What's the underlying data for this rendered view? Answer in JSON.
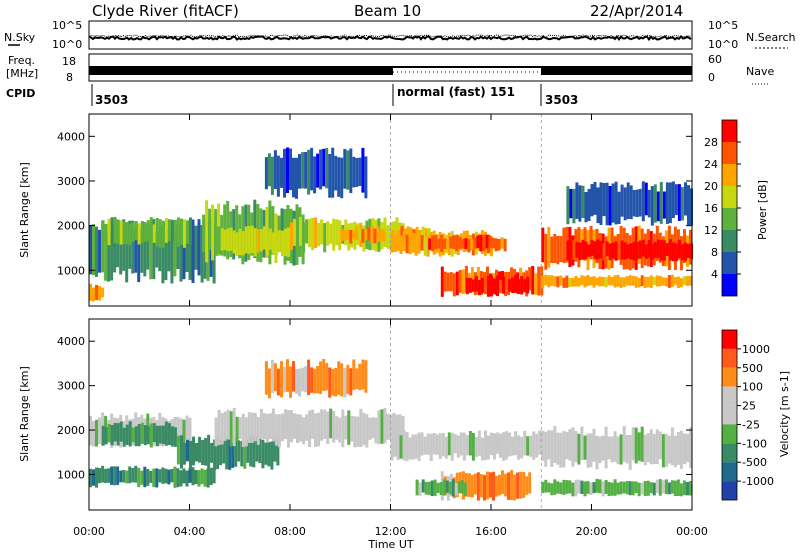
{
  "header": {
    "station": "Clyde River (fitACF)",
    "beam": "Beam 10",
    "date": "22/Apr/2014"
  },
  "noise_panel": {
    "left_label": "N.Sky",
    "right_label": "N.Search",
    "left_ticks": [
      "10^5",
      "10^0"
    ],
    "right_ticks": [
      "10^5",
      "10^0"
    ]
  },
  "freq_panel": {
    "left_label_line1": "Freq.",
    "left_label_line2": "[MHz]",
    "right_label": "Nave",
    "left_ticks": [
      "18",
      "8"
    ],
    "right_ticks": [
      "60",
      "0"
    ]
  },
  "cpid_panel": {
    "label": "CPID",
    "segments": [
      "3503",
      "normal (fast) 151",
      "3503"
    ]
  },
  "axes": {
    "ylabel": "Slant Range [km]",
    "xlabel": "Time UT",
    "x_ticks": [
      "00:00",
      "04:00",
      "08:00",
      "12:00",
      "16:00",
      "20:00",
      "00:00"
    ],
    "y_ticks": [
      "1000",
      "2000",
      "3000",
      "4000"
    ]
  },
  "colors": {
    "power_scale": [
      "#0000ff",
      "#2255aa",
      "#3a8a64",
      "#5fb13e",
      "#c8d810",
      "#ffa500",
      "#ff5500",
      "#ff0000"
    ],
    "velocity_scale": [
      "#2240aa",
      "#1e6a8a",
      "#3a8a64",
      "#55b044",
      "#c8c8c8",
      "#c8c8c8",
      "#ff8c1a",
      "#ff5a1a",
      "#ff0000"
    ]
  },
  "chart_data": [
    {
      "type": "heatmap",
      "title": "",
      "xlabel": "Time UT",
      "ylabel": "Slant Range [km]",
      "xlim": [
        0,
        24
      ],
      "ylim": [
        200,
        4500
      ],
      "colorbar_label": "Power [dB]",
      "colorbar_ticks": [
        "4",
        "8",
        "12",
        "16",
        "20",
        "24",
        "28"
      ],
      "bands": [
        {
          "t0": 0.0,
          "t1": 5.0,
          "r0": 700,
          "r1": 2200,
          "level": 2
        },
        {
          "t0": 0.5,
          "t1": 4.0,
          "r0": 1500,
          "r1": 2200,
          "level": 3
        },
        {
          "t0": 0.0,
          "t1": 0.6,
          "r0": 300,
          "r1": 700,
          "level": 5
        },
        {
          "t0": 4.5,
          "t1": 8.5,
          "r0": 1100,
          "r1": 2600,
          "level": 3
        },
        {
          "t0": 5.0,
          "t1": 8.0,
          "r0": 1300,
          "r1": 2000,
          "level": 4
        },
        {
          "t0": 8.0,
          "t1": 12.5,
          "r0": 1400,
          "r1": 2200,
          "level": 4
        },
        {
          "t0": 10.0,
          "t1": 13.5,
          "r0": 1600,
          "r1": 2000,
          "level": 5
        },
        {
          "t0": 12.0,
          "t1": 16.0,
          "r0": 1300,
          "r1": 1900,
          "level": 5
        },
        {
          "t0": 13.5,
          "t1": 16.5,
          "r0": 1400,
          "r1": 1800,
          "level": 6
        },
        {
          "t0": 14.0,
          "t1": 18.0,
          "r0": 400,
          "r1": 1100,
          "level": 6
        },
        {
          "t0": 15.0,
          "t1": 17.5,
          "r0": 400,
          "r1": 900,
          "level": 7
        },
        {
          "t0": 18.0,
          "t1": 24.0,
          "r0": 1000,
          "r1": 2000,
          "level": 6
        },
        {
          "t0": 19.0,
          "t1": 24.0,
          "r0": 1200,
          "r1": 1700,
          "level": 7
        },
        {
          "t0": 18.0,
          "t1": 24.0,
          "r0": 600,
          "r1": 900,
          "level": 5
        },
        {
          "t0": 7.0,
          "t1": 11.0,
          "r0": 2600,
          "r1": 3800,
          "level": 1
        },
        {
          "t0": 19.0,
          "t1": 24.0,
          "r0": 2000,
          "r1": 3000,
          "level": 1
        }
      ]
    },
    {
      "type": "heatmap",
      "title": "",
      "xlabel": "Time UT",
      "ylabel": "Slant Range [km]",
      "xlim": [
        0,
        24
      ],
      "ylim": [
        200,
        4500
      ],
      "colorbar_label": "Velocity [m s-1]",
      "colorbar_ticks": [
        "1000",
        "500",
        "100",
        "25",
        "-25",
        "-100",
        "-500",
        "-1000"
      ],
      "bands": [
        {
          "t0": 0.0,
          "t1": 4.0,
          "r0": 1600,
          "r1": 2400,
          "level": 4
        },
        {
          "t0": 0.0,
          "t1": 5.0,
          "r0": 700,
          "r1": 1200,
          "level": 2
        },
        {
          "t0": 0.5,
          "t1": 3.5,
          "r0": 1600,
          "r1": 2200,
          "level": 2
        },
        {
          "t0": 3.5,
          "t1": 7.5,
          "r0": 1100,
          "r1": 1900,
          "level": 2
        },
        {
          "t0": 5.0,
          "t1": 12.5,
          "r0": 1600,
          "r1": 2500,
          "level": 4
        },
        {
          "t0": 12.0,
          "t1": 18.0,
          "r0": 1300,
          "r1": 2000,
          "level": 4
        },
        {
          "t0": 18.0,
          "t1": 24.0,
          "r0": 1100,
          "r1": 2100,
          "level": 4
        },
        {
          "t0": 14.0,
          "t1": 17.5,
          "r0": 400,
          "r1": 1100,
          "level": 6
        },
        {
          "t0": 13.0,
          "t1": 15.0,
          "r0": 500,
          "r1": 900,
          "level": 3
        },
        {
          "t0": 18.0,
          "t1": 24.0,
          "r0": 500,
          "r1": 900,
          "level": 3
        },
        {
          "t0": 7.0,
          "t1": 11.0,
          "r0": 2700,
          "r1": 3600,
          "level": 6
        }
      ]
    }
  ]
}
